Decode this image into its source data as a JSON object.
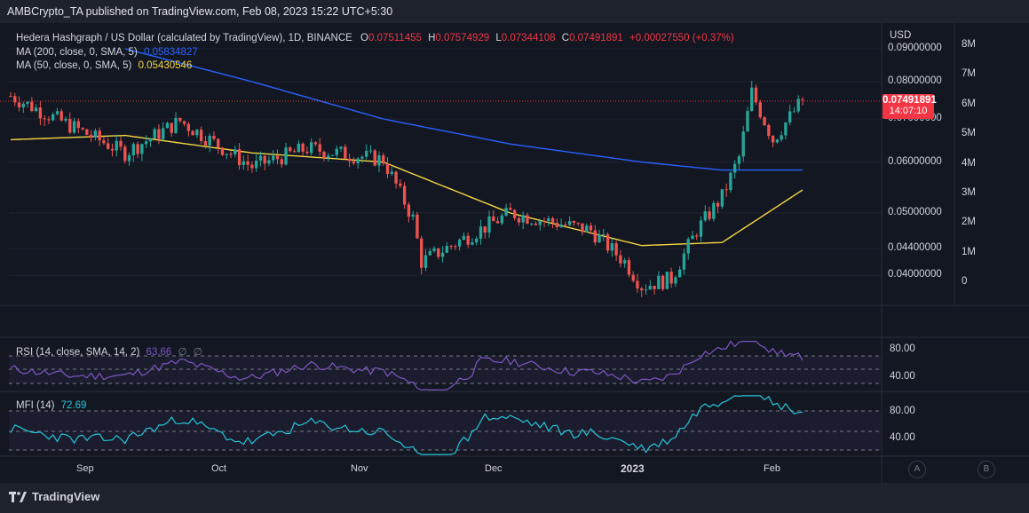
{
  "header": {
    "published": "AMBCrypto_TA published on TradingView.com, Feb 08, 2023 15:22 UTC+5:30"
  },
  "legend": {
    "symbol": "Hedera Hashgraph / US Dollar (calculated by TradingView), 1D, BINANCE",
    "o_label": "O",
    "o": "0.07511455",
    "h_label": "H",
    "h": "0.07574929",
    "l_label": "L",
    "l": "0.07344108",
    "c_label": "C",
    "c": "0.07491891",
    "change": "+0.00027550 (+0.37%)",
    "ma200_label": "MA (200, close, 0, SMA, 5)",
    "ma200_value": "0.05834827",
    "ma50_label": "MA (50, close, 0, SMA, 5)",
    "ma50_value": "0.05430546"
  },
  "price_axis": {
    "currency": "USD",
    "labels": [
      "0.09000000",
      "0.08000000",
      "0.07000000",
      "0.06000000",
      "0.05000000",
      "0.04400000",
      "0.04000000"
    ],
    "current_price": "0.07491891",
    "countdown": "14:07:10"
  },
  "volume_axis": {
    "labels": [
      "8M",
      "7M",
      "6M",
      "5M",
      "4M",
      "3M",
      "2M",
      "1M",
      "0"
    ]
  },
  "rsi": {
    "label": "RSI (14, close, SMA, 14, 2)",
    "value": "63.66",
    "extra1": "∅",
    "extra2": "∅",
    "levels": [
      "80.00",
      "40.00"
    ]
  },
  "mfi": {
    "label": "MFI (14)",
    "value": "72.69",
    "levels": [
      "80.00",
      "40.00"
    ]
  },
  "time_axis": {
    "labels": [
      "Sep",
      "Oct",
      "Nov",
      "Dec",
      "2023",
      "Jan",
      "Feb"
    ]
  },
  "scale_buttons": {
    "auto": "A",
    "log": "B"
  },
  "footer": {
    "brand": "TradingView"
  },
  "colors": {
    "up": "#26a69a",
    "down": "#ef5350",
    "ma200": "#2962ff",
    "ma50": "#f5d742",
    "rsi": "#7e57c2",
    "mfi": "#26c6da",
    "price_tag": "#f23645",
    "background": "#131722"
  },
  "chart_data": {
    "type": "candlestick",
    "title": "Hedera Hashgraph / US Dollar (calculated by TradingView), 1D, BINANCE",
    "last": {
      "open": 0.07511455,
      "high": 0.07574929,
      "low": 0.07344108,
      "close": 0.07491891
    },
    "x_range": [
      "2022-08-05",
      "2023-02-08"
    ],
    "key_closes": [
      {
        "date": "2022-08-05",
        "close": 0.076
      },
      {
        "date": "2022-09-01",
        "close": 0.062
      },
      {
        "date": "2022-09-14",
        "close": 0.0695
      },
      {
        "date": "2022-10-01",
        "close": 0.059
      },
      {
        "date": "2022-10-14",
        "close": 0.063
      },
      {
        "date": "2022-11-01",
        "close": 0.0605
      },
      {
        "date": "2022-11-08",
        "close": 0.049
      },
      {
        "date": "2022-11-10",
        "close": 0.042
      },
      {
        "date": "2022-12-01",
        "close": 0.05
      },
      {
        "date": "2022-12-20",
        "close": 0.047
      },
      {
        "date": "2022-12-28",
        "close": 0.042
      },
      {
        "date": "2023-01-01",
        "close": 0.0385
      },
      {
        "date": "2023-01-08",
        "close": 0.0395
      },
      {
        "date": "2023-01-14",
        "close": 0.047
      },
      {
        "date": "2023-01-20",
        "close": 0.053
      },
      {
        "date": "2023-01-24",
        "close": 0.061
      },
      {
        "date": "2023-01-27",
        "close": 0.077
      },
      {
        "date": "2023-02-01",
        "close": 0.065
      },
      {
        "date": "2023-02-08",
        "close": 0.0749
      }
    ],
    "ma200": [
      {
        "date": "2022-07-01",
        "value": 0.098
      },
      {
        "date": "2022-09-01",
        "value": 0.09
      },
      {
        "date": "2022-10-01",
        "value": 0.08
      },
      {
        "date": "2022-11-01",
        "value": 0.07
      },
      {
        "date": "2022-12-01",
        "value": 0.064
      },
      {
        "date": "2023-01-01",
        "value": 0.06
      },
      {
        "date": "2023-01-20",
        "value": 0.0583
      },
      {
        "date": "2023-02-08",
        "value": 0.0583
      }
    ],
    "ma50": [
      {
        "date": "2022-08-05",
        "value": 0.065
      },
      {
        "date": "2022-09-01",
        "value": 0.066
      },
      {
        "date": "2022-10-01",
        "value": 0.062
      },
      {
        "date": "2022-11-01",
        "value": 0.06
      },
      {
        "date": "2022-12-01",
        "value": 0.05
      },
      {
        "date": "2023-01-01",
        "value": 0.0445
      },
      {
        "date": "2023-01-20",
        "value": 0.045
      },
      {
        "date": "2023-02-08",
        "value": 0.0543
      }
    ],
    "rsi_last": 63.66,
    "mfi_last": 72.69,
    "y_scale": "log"
  }
}
